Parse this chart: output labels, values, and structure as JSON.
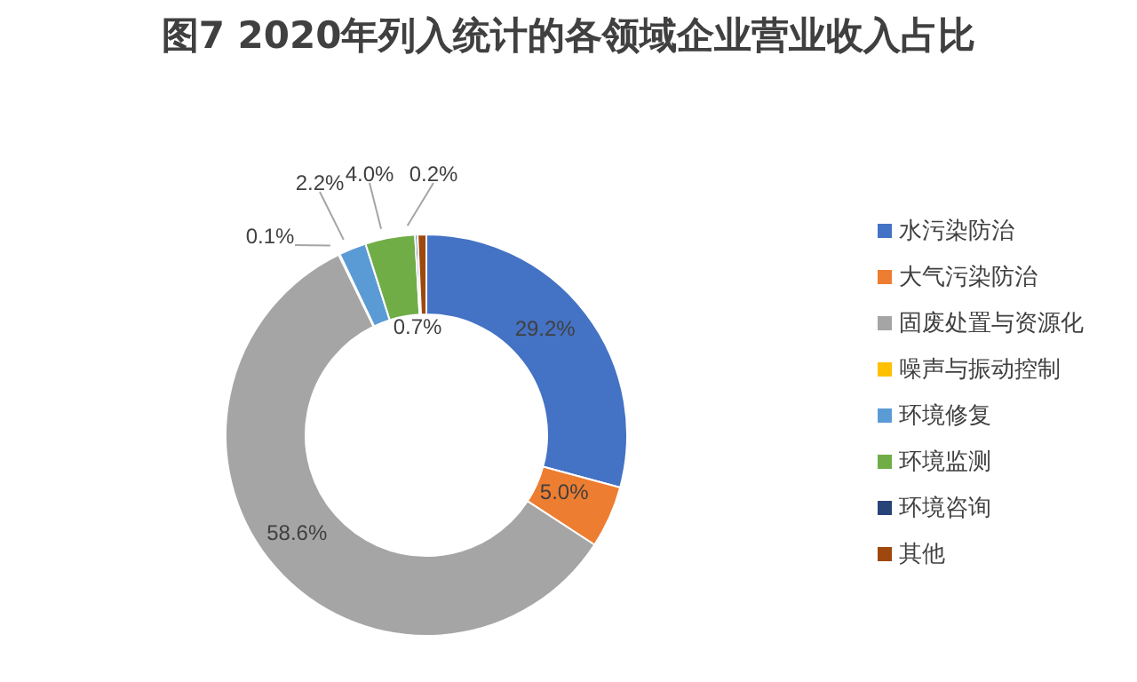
{
  "chart_data": {
    "type": "donut",
    "title": "图7 2020年列入统计的各领域企业营业收入占比",
    "categories": [
      "水污染防治",
      "大气污染防治",
      "固废处置与资源化",
      "噪声与振动控制",
      "环境修复",
      "环境监测",
      "环境咨询",
      "其他"
    ],
    "values": [
      29.2,
      5.0,
      58.6,
      0.1,
      2.2,
      4.0,
      0.2,
      0.7
    ],
    "colors": [
      "#4472c4",
      "#ed7d31",
      "#a5a5a5",
      "#ffc000",
      "#5b9bd5",
      "#70ad47",
      "#264478",
      "#9e480e"
    ],
    "value_labels": [
      "29.2%",
      "5.0%",
      "58.6%",
      "0.1%",
      "2.2%",
      "4.0%",
      "0.2%",
      "0.7%"
    ],
    "legend": "right"
  }
}
